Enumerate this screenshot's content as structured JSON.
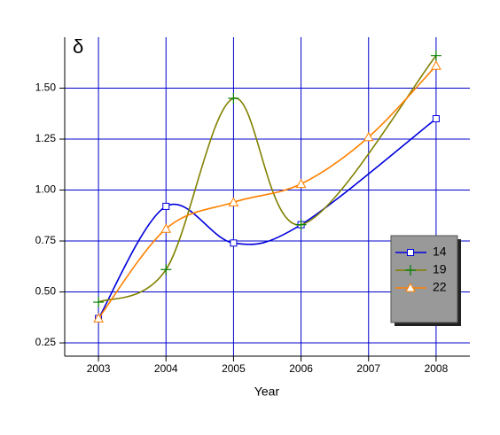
{
  "chart_data": {
    "type": "line",
    "y_label": "δ",
    "x_label": "Year",
    "xlim": [
      2002.5,
      2008.5
    ],
    "xticks": [
      2003,
      2004,
      2005,
      2006,
      2007,
      2008
    ],
    "ylim": [
      0.185,
      1.75
    ],
    "yticks": [
      {
        "value": 0.25,
        "label": "0.25"
      },
      {
        "value": 0.5,
        "label": "0.50"
      },
      {
        "value": 0.75,
        "label": "0.75"
      },
      {
        "value": 1.0,
        "label": "1.00"
      },
      {
        "value": 1.25,
        "label": "1.25"
      },
      {
        "value": 1.5,
        "label": "1.50"
      }
    ],
    "grid": true,
    "legend": "right",
    "series": [
      {
        "name": "14",
        "color": "#0000dd",
        "marker": "square",
        "x": [
          2003,
          2004,
          2005,
          2006,
          2008
        ],
        "values": [
          0.37,
          0.92,
          0.74,
          0.83,
          1.35
        ]
      },
      {
        "name": "19",
        "color": "#808000",
        "marker_color": "#008000",
        "marker": "plus",
        "x": [
          2003,
          2004,
          2005,
          2006,
          2008
        ],
        "values": [
          0.45,
          0.61,
          1.45,
          0.83,
          1.66
        ]
      },
      {
        "name": "22",
        "color": "#ff8000",
        "marker": "triangle",
        "x": [
          2003,
          2004,
          2005,
          2006,
          2007,
          2008
        ],
        "values": [
          0.37,
          0.81,
          0.94,
          1.03,
          1.26,
          1.61
        ]
      }
    ]
  }
}
